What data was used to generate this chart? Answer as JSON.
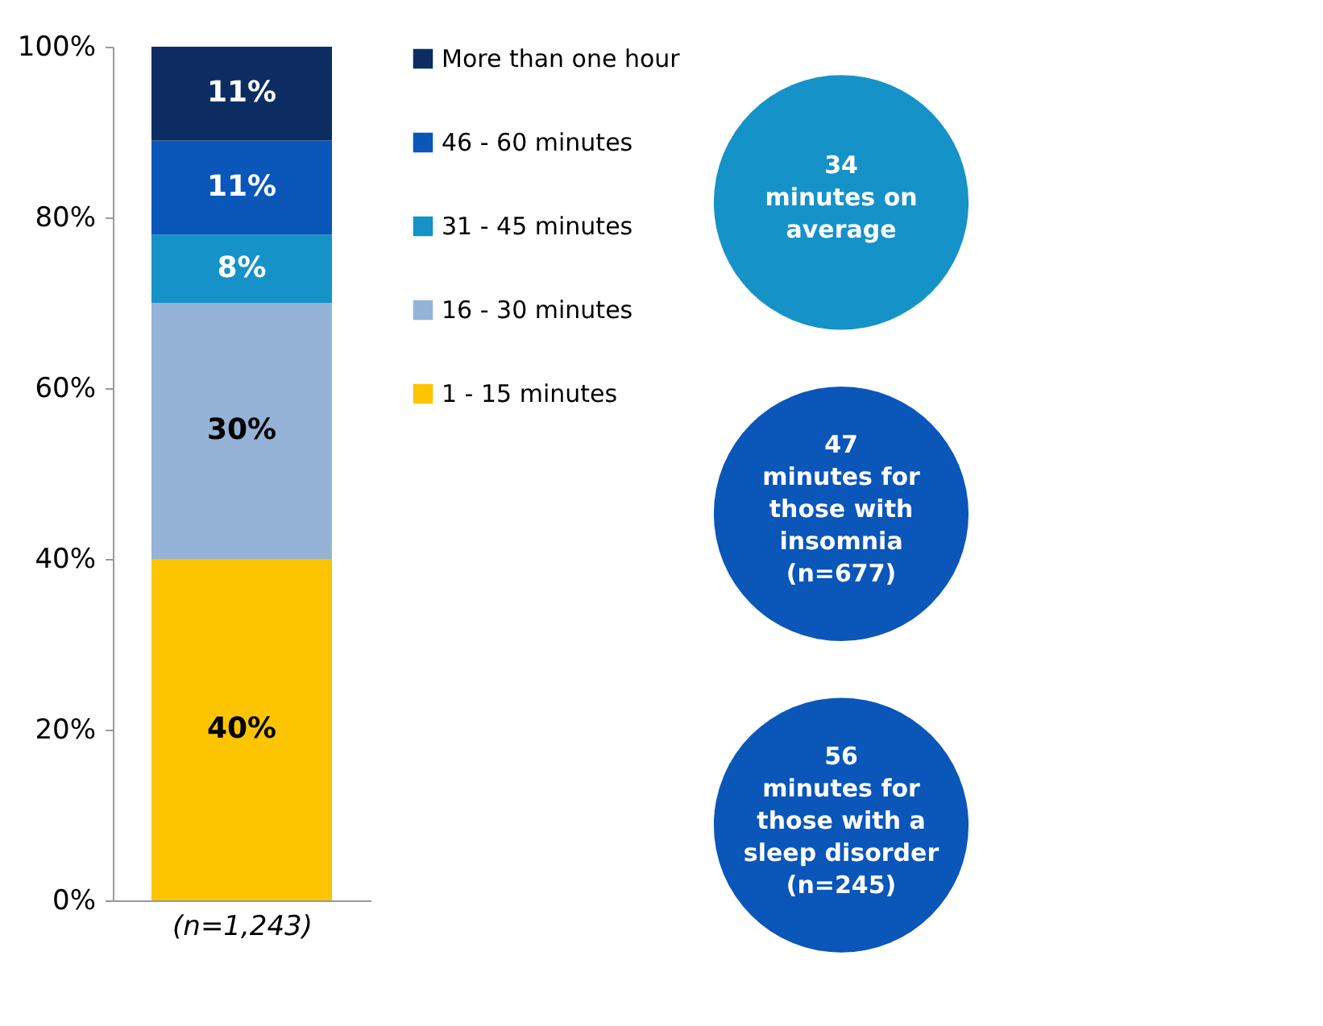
{
  "chart_data": {
    "type": "bar",
    "stacked": true,
    "categories": [
      "(n=1,243)"
    ],
    "series": [
      {
        "name": "1 - 15 minutes",
        "color": "#fcc500",
        "values": [
          40
        ],
        "value_labels": [
          "40%"
        ]
      },
      {
        "name": "16 - 30 minutes",
        "color": "#95b3d7",
        "values": [
          30
        ],
        "value_labels": [
          "30%"
        ]
      },
      {
        "name": "31 - 45 minutes",
        "color": "#1592c8",
        "values": [
          8
        ],
        "value_labels": [
          "8%"
        ]
      },
      {
        "name": "46 - 60 minutes",
        "color": "#0a56b9",
        "values": [
          11
        ],
        "value_labels": [
          "11%"
        ]
      },
      {
        "name": "More than one hour",
        "color": "#0d2d62",
        "values": [
          11
        ],
        "value_labels": [
          "11%"
        ]
      }
    ],
    "ylim": [
      0,
      100
    ],
    "yticks": [
      {
        "value": 0,
        "label": "0%"
      },
      {
        "value": 20,
        "label": "20%"
      },
      {
        "value": 40,
        "label": "40%"
      },
      {
        "value": 60,
        "label": "60%"
      },
      {
        "value": 80,
        "label": "80%"
      },
      {
        "value": 100,
        "label": "100%"
      }
    ],
    "legend": "right",
    "grid": false,
    "annotations": [
      "34 minutes on average",
      "47 minutes for those with insomnia (n=677)",
      "56 minutes for those with a sleep disorder (n=245)"
    ]
  }
}
